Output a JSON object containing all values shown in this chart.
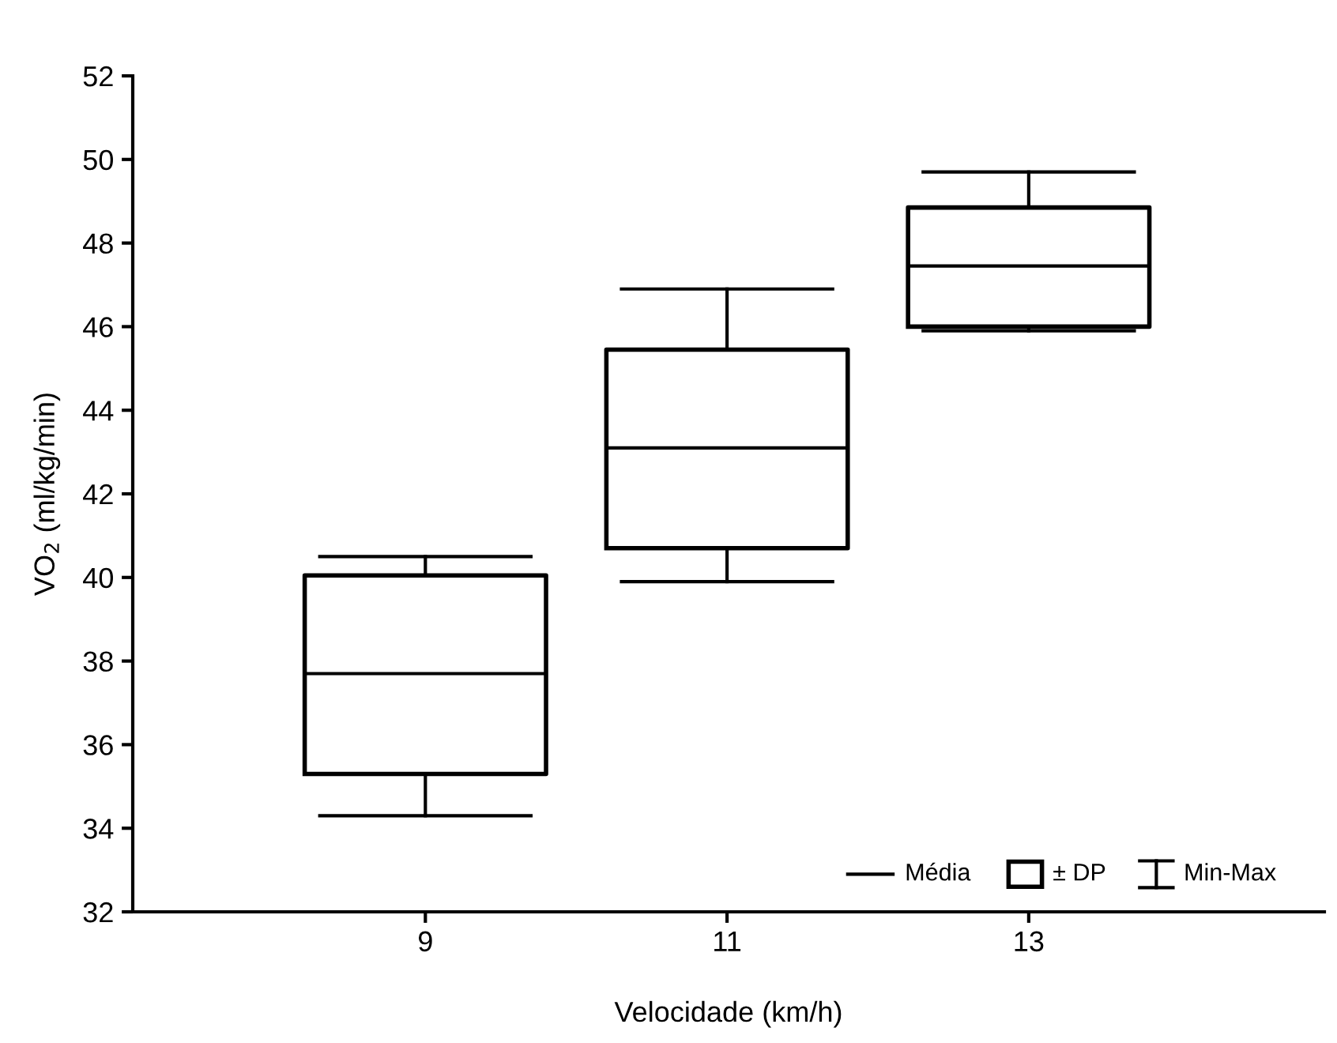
{
  "chart_data": {
    "type": "box",
    "xlabel": "Velocidade (km/h)",
    "ylabel": "VO$_{2}$ (ml/kg/min)",
    "categories": [
      "9",
      "11",
      "13"
    ],
    "boxes": [
      {
        "low": 34.3,
        "q1": 35.3,
        "median": 37.7,
        "q3": 40.05,
        "high": 40.5
      },
      {
        "low": 39.9,
        "q1": 40.7,
        "median": 43.1,
        "q3": 45.45,
        "high": 46.9
      },
      {
        "low": 45.9,
        "q1": 46.0,
        "median": 47.45,
        "q3": 48.85,
        "high": 49.7
      }
    ],
    "ylim": [
      32,
      52
    ],
    "yticks": [
      32,
      34,
      36,
      38,
      40,
      42,
      44,
      46,
      48,
      50,
      52
    ],
    "annotations": [
      "Média",
      "± DP",
      "Min-Max"
    ],
    "grid": false
  }
}
